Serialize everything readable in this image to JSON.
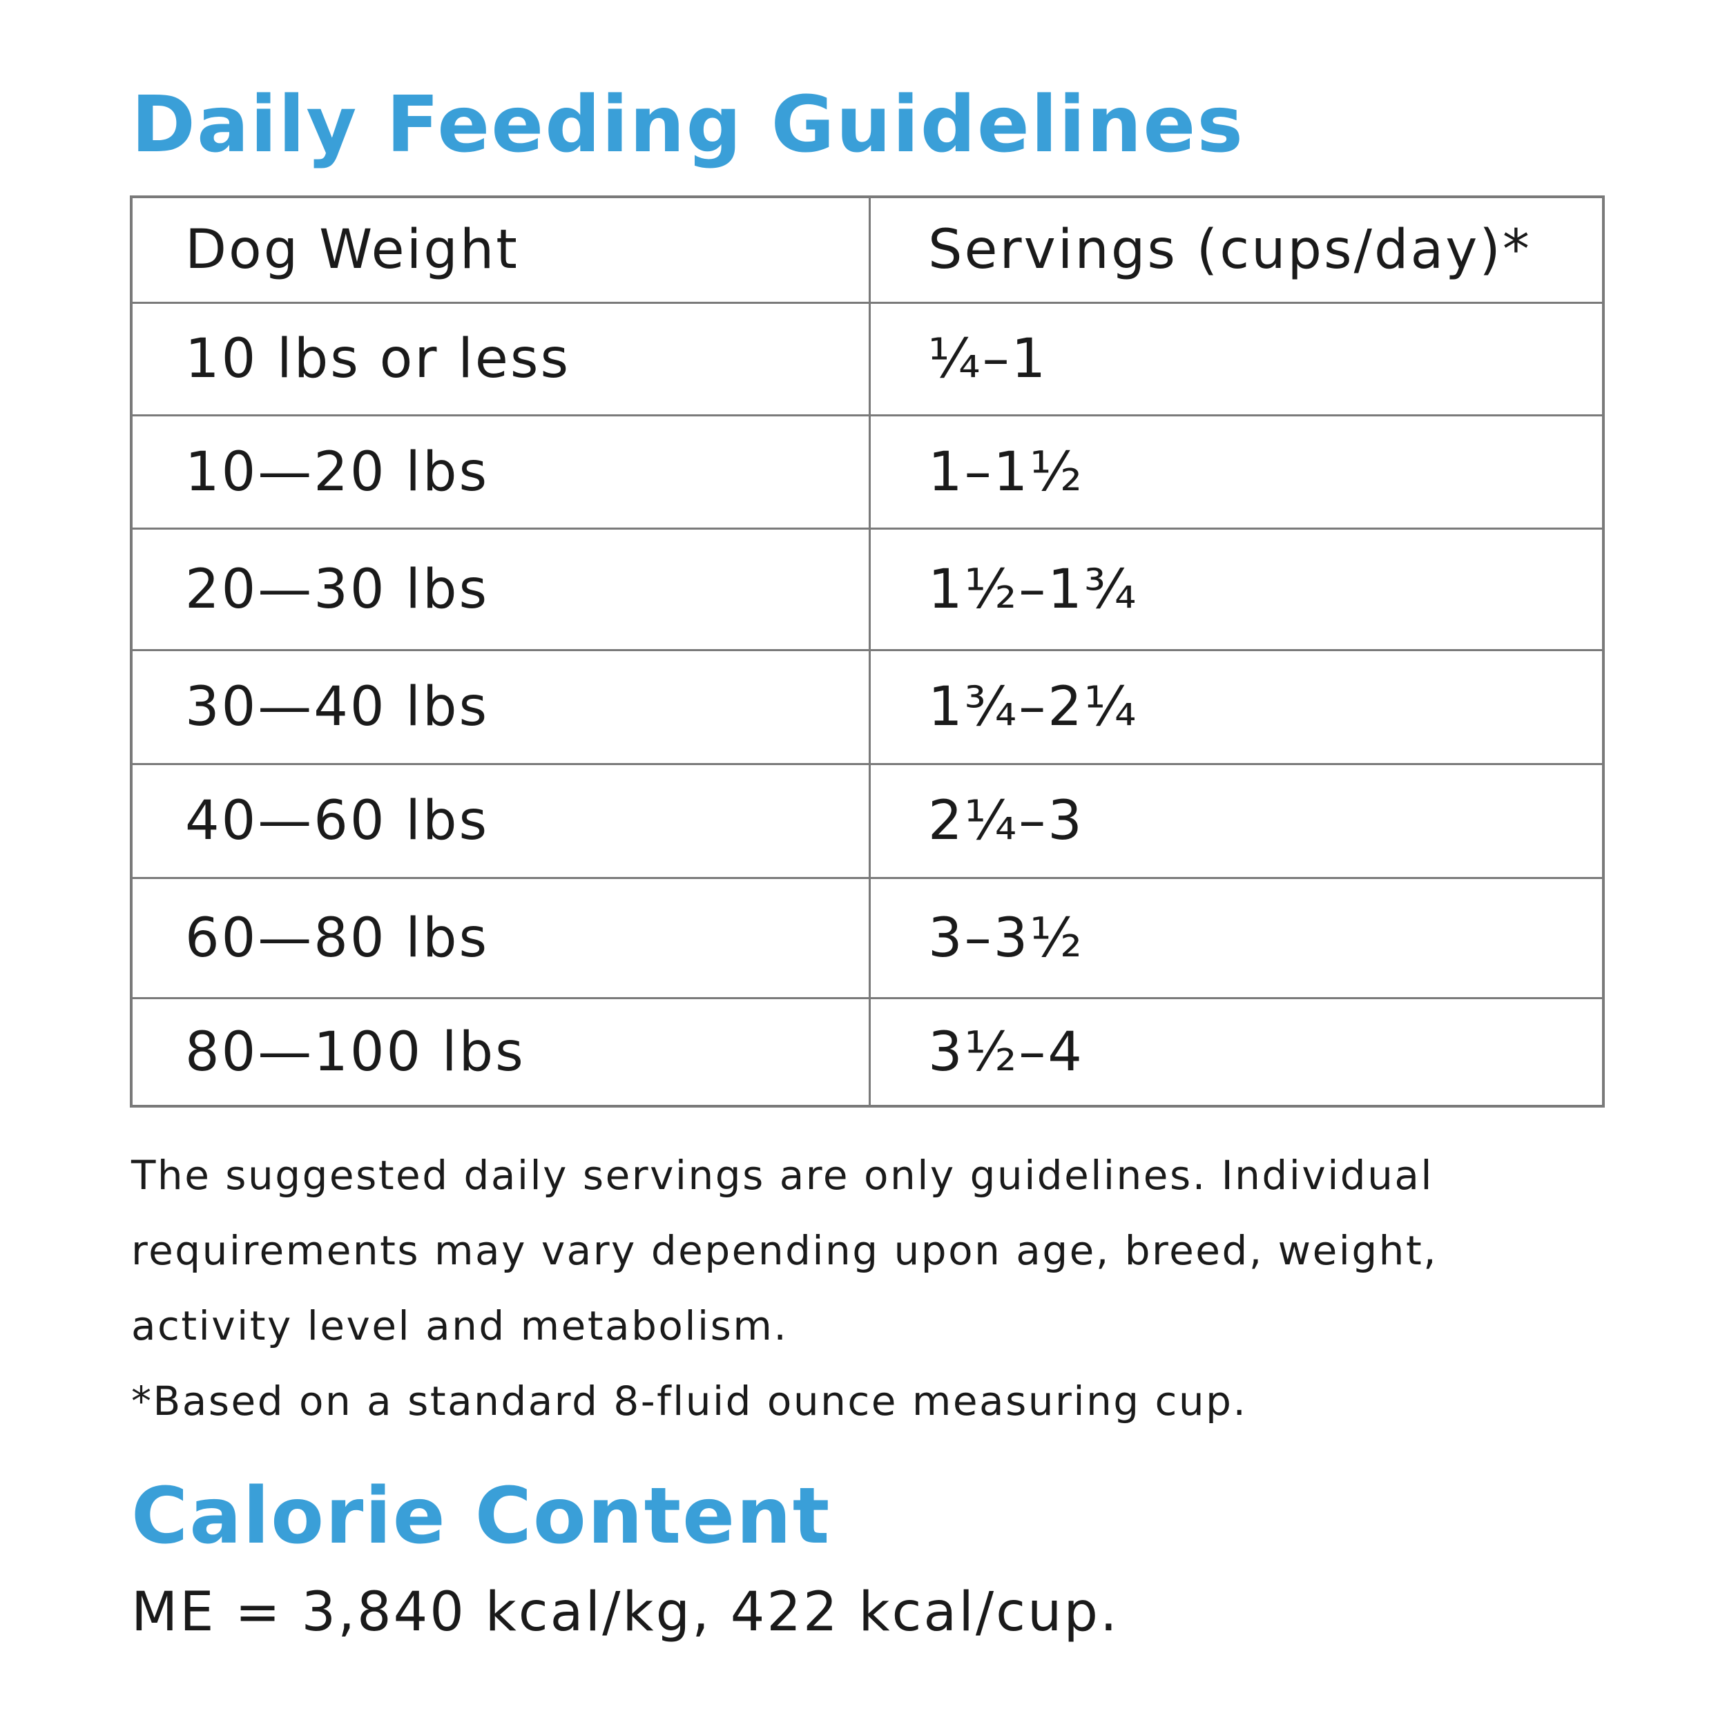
{
  "feeding": {
    "title": "Daily Feeding Guidelines",
    "table": {
      "header": {
        "weight": "Dog Weight",
        "servings": "Servings (cups/day)*"
      },
      "rows": [
        {
          "weight": "10 lbs or less",
          "servings": "¼–1"
        },
        {
          "weight": "10—20 lbs",
          "servings": "1–1½"
        },
        {
          "weight": "20—30 lbs",
          "servings": "1½–1¾"
        },
        {
          "weight": "30—40 lbs",
          "servings": "1¾–2¼"
        },
        {
          "weight": "40—60 lbs",
          "servings": "2¼–3"
        },
        {
          "weight": "60—80 lbs",
          "servings": "3–3½"
        },
        {
          "weight": "80—100 lbs",
          "servings": "3½–4"
        }
      ]
    },
    "note_lines": [
      "The suggested daily servings are only guidelines. Individual",
      "requirements may vary depending upon age, breed, weight,",
      "activity level and metabolism.",
      "*Based on a standard 8-fluid ounce measuring cup."
    ]
  },
  "calorie": {
    "title": "Calorie Content",
    "text": "ME = 3,840 kcal/kg, 422 kcal/cup."
  },
  "colors": {
    "heading": "#3a9fd8",
    "table_border": "#7a7a7a",
    "text": "#1a1a1a"
  }
}
